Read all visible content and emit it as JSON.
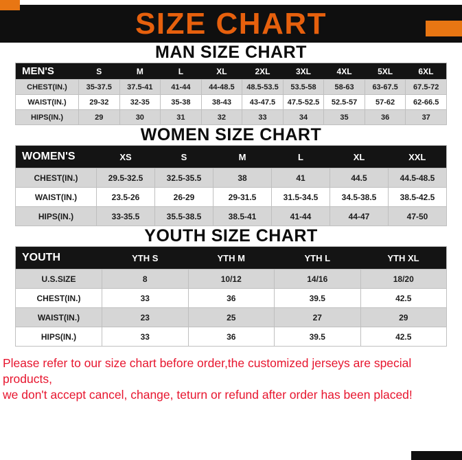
{
  "banner": {
    "title": "SIZE CHART"
  },
  "colors": {
    "banner_bg": "#0f0f0f",
    "title_orange": "#e6600d",
    "accent_orange": "#e87613",
    "table_header_black": "#141414",
    "row_gray": "#d6d6d6",
    "footer_red": "#e7152e"
  },
  "sections": [
    {
      "heading": "MAN SIZE CHART",
      "table": {
        "header": [
          "MEN'S",
          "S",
          "M",
          "L",
          "XL",
          "2XL",
          "3XL",
          "4XL",
          "5XL",
          "6XL"
        ],
        "rows": [
          [
            "CHEST(IN.)",
            "35-37.5",
            "37.5-41",
            "41-44",
            "44-48.5",
            "48.5-53.5",
            "53.5-58",
            "58-63",
            "63-67.5",
            "67.5-72"
          ],
          [
            "WAIST(IN.)",
            "29-32",
            "32-35",
            "35-38",
            "38-43",
            "43-47.5",
            "47.5-52.5",
            "52.5-57",
            "57-62",
            "62-66.5"
          ],
          [
            "HIPS(IN.)",
            "29",
            "30",
            "31",
            "32",
            "33",
            "34",
            "35",
            "36",
            "37"
          ]
        ]
      }
    },
    {
      "heading": "WOMEN SIZE CHART",
      "table": {
        "header": [
          "WOMEN'S",
          "XS",
          "S",
          "M",
          "L",
          "XL",
          "XXL"
        ],
        "rows": [
          [
            "CHEST(IN.)",
            "29.5-32.5",
            "32.5-35.5",
            "38",
            "41",
            "44.5",
            "44.5-48.5"
          ],
          [
            "WAIST(IN.)",
            "23.5-26",
            "26-29",
            "29-31.5",
            "31.5-34.5",
            "34.5-38.5",
            "38.5-42.5"
          ],
          [
            "HIPS(IN.)",
            "33-35.5",
            "35.5-38.5",
            "38.5-41",
            "41-44",
            "44-47",
            "47-50"
          ]
        ]
      }
    },
    {
      "heading": "YOUTH SIZE CHART",
      "table": {
        "header": [
          "YOUTH",
          "YTH S",
          "YTH M",
          "YTH L",
          "YTH XL"
        ],
        "rows": [
          [
            "U.S.SIZE",
            "8",
            "10/12",
            "14/16",
            "18/20"
          ],
          [
            "CHEST(IN.)",
            "33",
            "36",
            "39.5",
            "42.5"
          ],
          [
            "WAIST(IN.)",
            "23",
            "25",
            "27",
            "29"
          ],
          [
            "HIPS(IN.)",
            "33",
            "36",
            "39.5",
            "42.5"
          ]
        ]
      }
    }
  ],
  "footer": {
    "line1": "Please refer to our size chart before order,the customized jerseys are special products,",
    "line2": "we don't accept cancel, change, teturn or refund after order has been placed!"
  }
}
